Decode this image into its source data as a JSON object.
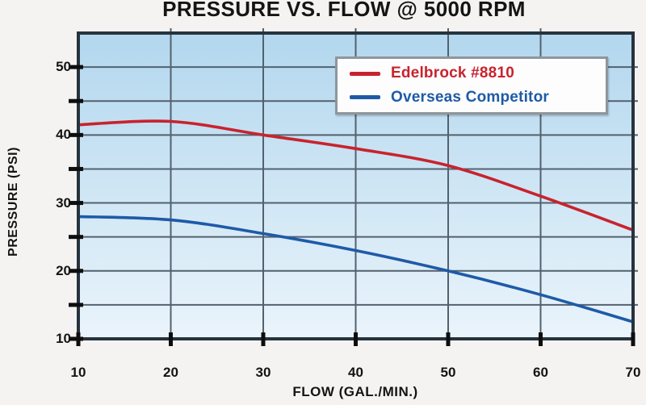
{
  "page": {
    "background": "#f4f3f1"
  },
  "chart_data": {
    "type": "line",
    "title": "PRESSURE VS. FLOW @ 5000 RPM",
    "xlabel": "FLOW (GAL./MIN.)",
    "ylabel": "PRESSURE (PSI)",
    "x": [
      10,
      20,
      30,
      40,
      50,
      60,
      70
    ],
    "series": [
      {
        "name": "Edelbrock #8810",
        "color": "#c8232e",
        "values": [
          41.5,
          42,
          40,
          38,
          35.5,
          31,
          26
        ]
      },
      {
        "name": "Overseas Competitor",
        "color": "#1e5aa7",
        "values": [
          28,
          27.5,
          25.5,
          23,
          20,
          16.5,
          12.5
        ]
      }
    ],
    "xlim": [
      10,
      70
    ],
    "ylim": [
      10,
      55
    ],
    "x_ticks": [
      10,
      20,
      30,
      40,
      50,
      60,
      70
    ],
    "y_ticks": [
      10,
      15,
      20,
      25,
      30,
      35,
      40,
      45,
      50
    ],
    "y_tick_labels": [
      10,
      20,
      30,
      40,
      50
    ],
    "grid": true,
    "legend_position": "top-right",
    "styles": {
      "plot_bg_top": "#b2d7ee",
      "plot_bg_bottom": "#eaf4fb",
      "grid_color": "#53616e",
      "border_color": "#26333e",
      "tick_color": "#0e0e0e",
      "text_color": "#141414",
      "legend_border": "#8e969d",
      "legend_bg": "#fdfdfd"
    }
  }
}
